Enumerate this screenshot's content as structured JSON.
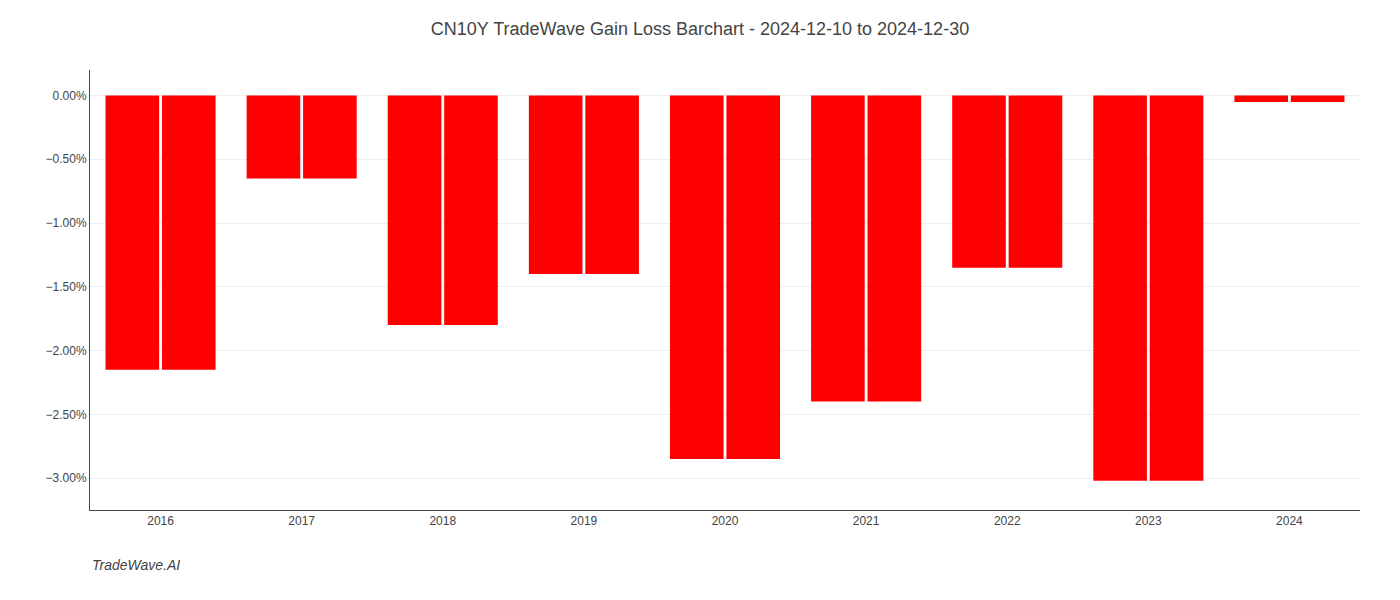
{
  "chart_data": {
    "type": "bar",
    "title": "CN10Y TradeWave Gain Loss Barchart - 2024-12-10 to 2024-12-30",
    "annotations": [
      "TradeWave.AI"
    ],
    "categories": [
      "2016",
      "2017",
      "2018",
      "2019",
      "2020",
      "2021",
      "2022",
      "2023",
      "2024"
    ],
    "series": [
      {
        "color": "#FF0000",
        "values": [
          -2.15,
          -0.65,
          -1.8,
          -1.4,
          -2.85,
          -2.4,
          -1.35,
          -3.02,
          -0.05
        ]
      },
      {
        "color": "#FF0000",
        "values": [
          -2.15,
          -0.65,
          -1.8,
          -1.4,
          -2.85,
          -2.4,
          -1.35,
          -3.02,
          -0.05
        ]
      }
    ],
    "ylim": [
      -3.25,
      0.2
    ],
    "yticks": [
      {
        "value": 0.0,
        "label": "0.00%"
      },
      {
        "value": -0.5,
        "label": "−0.50%"
      },
      {
        "value": -1.0,
        "label": "−1.00%"
      },
      {
        "value": -1.5,
        "label": "−1.50%"
      },
      {
        "value": -2.0,
        "label": "−2.00%"
      },
      {
        "value": -2.5,
        "label": "−2.50%"
      },
      {
        "value": -3.0,
        "label": "−3.00%"
      }
    ],
    "grid": true
  }
}
